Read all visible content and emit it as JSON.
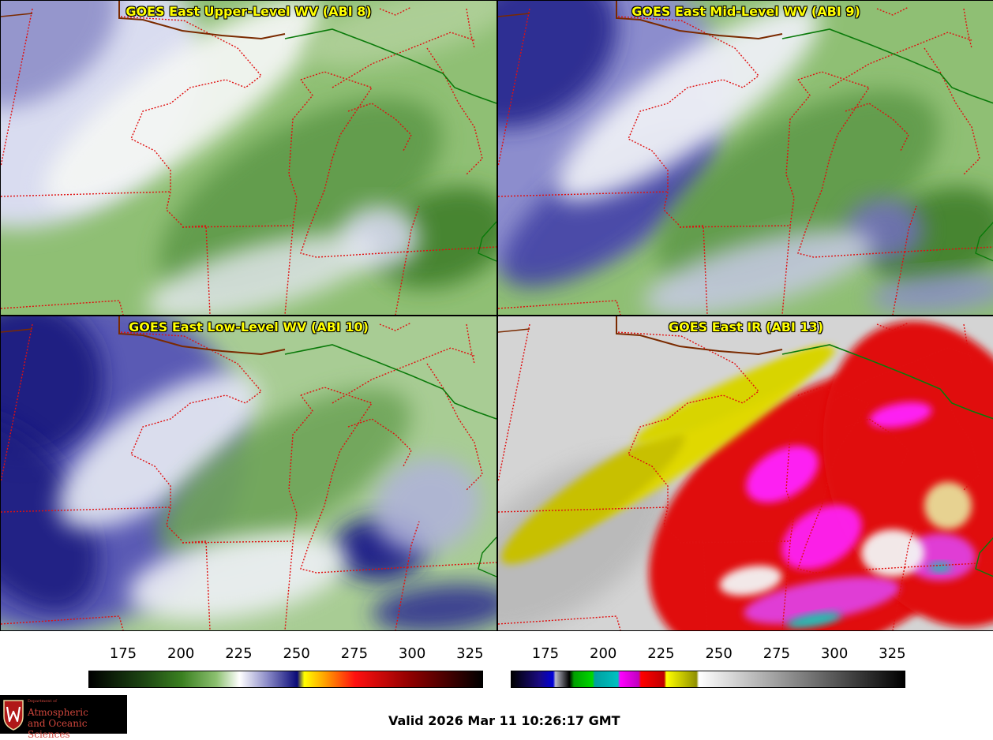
{
  "panels": [
    {
      "title": "GOES East Upper-Level WV (ABI 8)",
      "product": "upper-level-wv"
    },
    {
      "title": "GOES East Mid-Level WV (ABI 9)",
      "product": "mid-level-wv"
    },
    {
      "title": "GOES East Low-Level WV (ABI 10)",
      "product": "low-level-wv"
    },
    {
      "title": "GOES East IR (ABI 13)",
      "product": "ir"
    }
  ],
  "colorbar_wv": {
    "ticks": [
      "175",
      "200",
      "225",
      "250",
      "275",
      "300",
      "325"
    ],
    "range": [
      160,
      330
    ],
    "stops": [
      {
        "v": 160,
        "c": "#000000"
      },
      {
        "v": 185,
        "c": "#1f4a14"
      },
      {
        "v": 200,
        "c": "#3a8020"
      },
      {
        "v": 215,
        "c": "#8cc070"
      },
      {
        "v": 225,
        "c": "#ffffff"
      },
      {
        "v": 237,
        "c": "#8c8cc8"
      },
      {
        "v": 250,
        "c": "#0a0a78"
      },
      {
        "v": 253,
        "c": "#ffff00"
      },
      {
        "v": 262,
        "c": "#ffa000"
      },
      {
        "v": 275,
        "c": "#ff1010"
      },
      {
        "v": 300,
        "c": "#8a0000"
      },
      {
        "v": 330,
        "c": "#000000"
      }
    ]
  },
  "colorbar_ir": {
    "ticks": [
      "175",
      "200",
      "225",
      "250",
      "275",
      "300",
      "325"
    ],
    "range": [
      160,
      330
    ],
    "stops": [
      {
        "v": 160,
        "c": "#000000"
      },
      {
        "v": 172,
        "c": "#1a0a80"
      },
      {
        "v": 178,
        "c": "#0000d8"
      },
      {
        "v": 179,
        "c": "#b8b8c8"
      },
      {
        "v": 185,
        "c": "#000000"
      },
      {
        "v": 187,
        "c": "#00a000"
      },
      {
        "v": 195,
        "c": "#00d800"
      },
      {
        "v": 196,
        "c": "#00a0a0"
      },
      {
        "v": 206,
        "c": "#00c0c0"
      },
      {
        "v": 207,
        "c": "#ff00ff"
      },
      {
        "v": 215,
        "c": "#c000c0"
      },
      {
        "v": 216,
        "c": "#ff0000"
      },
      {
        "v": 226,
        "c": "#c00000"
      },
      {
        "v": 227,
        "c": "#ffff00"
      },
      {
        "v": 240,
        "c": "#909000"
      },
      {
        "v": 241,
        "c": "#ffffff"
      },
      {
        "v": 330,
        "c": "#000000"
      }
    ]
  },
  "logo": {
    "department": "Department of",
    "line1": "Atmospheric",
    "line2": "and Oceanic Sciences"
  },
  "valid_time": "Valid 2026 Mar 11 10:26:17 GMT"
}
